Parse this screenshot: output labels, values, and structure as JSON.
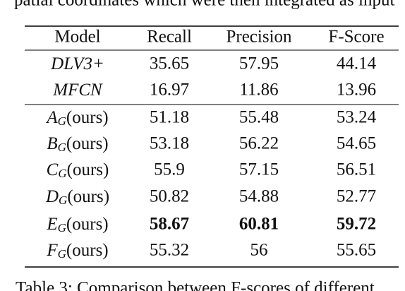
{
  "context_text": "patial coordinates which were then integrated as input",
  "table": {
    "header": [
      "Model",
      "Recall",
      "Precision",
      "F-Score"
    ],
    "baselines": [
      {
        "model": {
          "main": "DLV3+"
        },
        "cells": [
          "35.65",
          "57.95",
          "44.14"
        ],
        "bold": false
      },
      {
        "model": {
          "main": "MFCN"
        },
        "cells": [
          "16.97",
          "11.86",
          "13.96"
        ],
        "bold": false
      }
    ],
    "ours": [
      {
        "model": {
          "main": "A",
          "sub": "G",
          "rest": "(ours)"
        },
        "cells": [
          "51.18",
          "55.48",
          "53.24"
        ],
        "bold": false
      },
      {
        "model": {
          "main": "B",
          "sub": "G",
          "rest": "(ours)"
        },
        "cells": [
          "53.18",
          "56.22",
          "54.65"
        ],
        "bold": false
      },
      {
        "model": {
          "main": "C",
          "sub": "G",
          "rest": "(ours)"
        },
        "cells": [
          "55.9",
          "57.15",
          "56.51"
        ],
        "bold": false
      },
      {
        "model": {
          "main": "D",
          "sub": "G",
          "rest": "(ours)"
        },
        "cells": [
          "50.82",
          "54.88",
          "52.77"
        ],
        "bold": false
      },
      {
        "model": {
          "main": "E",
          "sub": "G",
          "rest": "(ours)"
        },
        "cells": [
          "58.67",
          "60.81",
          "59.72"
        ],
        "bold": true
      },
      {
        "model": {
          "main": "F",
          "sub": "G",
          "rest": "(ours)"
        },
        "cells": [
          "55.32",
          "56",
          "55.65"
        ],
        "bold": false
      }
    ]
  },
  "caption": "Table 3: Comparison between F-scores of different"
}
